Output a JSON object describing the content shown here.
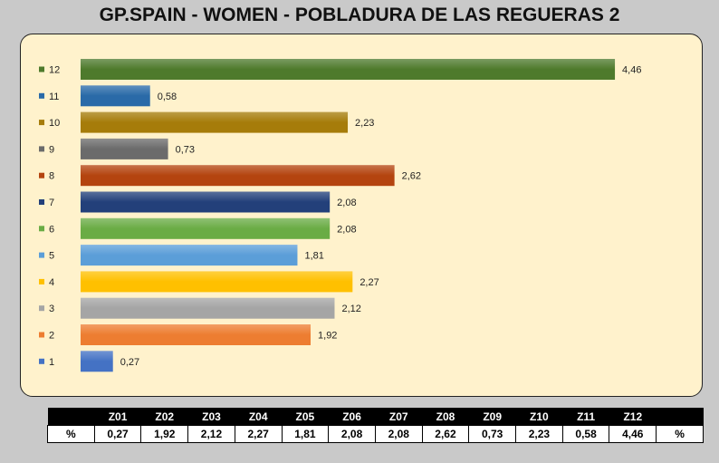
{
  "title": "GP.SPAIN - WOMEN - POBLADURA DE LAS REGUERAS 2",
  "chart_data": {
    "type": "bar",
    "orientation": "horizontal",
    "categories": [
      "12",
      "11",
      "10",
      "9",
      "8",
      "7",
      "6",
      "5",
      "4",
      "3",
      "2",
      "1"
    ],
    "values": [
      4.46,
      0.58,
      2.23,
      0.73,
      2.62,
      2.08,
      2.08,
      1.81,
      2.27,
      2.12,
      1.92,
      0.27
    ],
    "value_labels": [
      "4,46",
      "0,58",
      "2,23",
      "0,73",
      "2,62",
      "2,08",
      "2,08",
      "1,81",
      "2,27",
      "2,12",
      "1,92",
      "0,27"
    ],
    "colors": [
      "#4e7a2c",
      "#2a6aa8",
      "#a67c0a",
      "#6b6b6b",
      "#b4440f",
      "#23407a",
      "#6aac45",
      "#5b9ed8",
      "#ffc000",
      "#a5a5a5",
      "#ed7d31",
      "#4472c4"
    ],
    "grid": false,
    "legend": "left"
  },
  "table": {
    "header_first": "",
    "header_last": "",
    "headers": [
      "Z01",
      "Z02",
      "Z03",
      "Z04",
      "Z05",
      "Z06",
      "Z07",
      "Z08",
      "Z09",
      "Z10",
      "Z11",
      "Z12"
    ],
    "row_label": "%",
    "row_suffix": "%",
    "values": [
      "0,27",
      "1,92",
      "2,12",
      "2,27",
      "1,81",
      "2,08",
      "2,08",
      "2,62",
      "0,73",
      "2,23",
      "0,58",
      "4,46"
    ]
  }
}
